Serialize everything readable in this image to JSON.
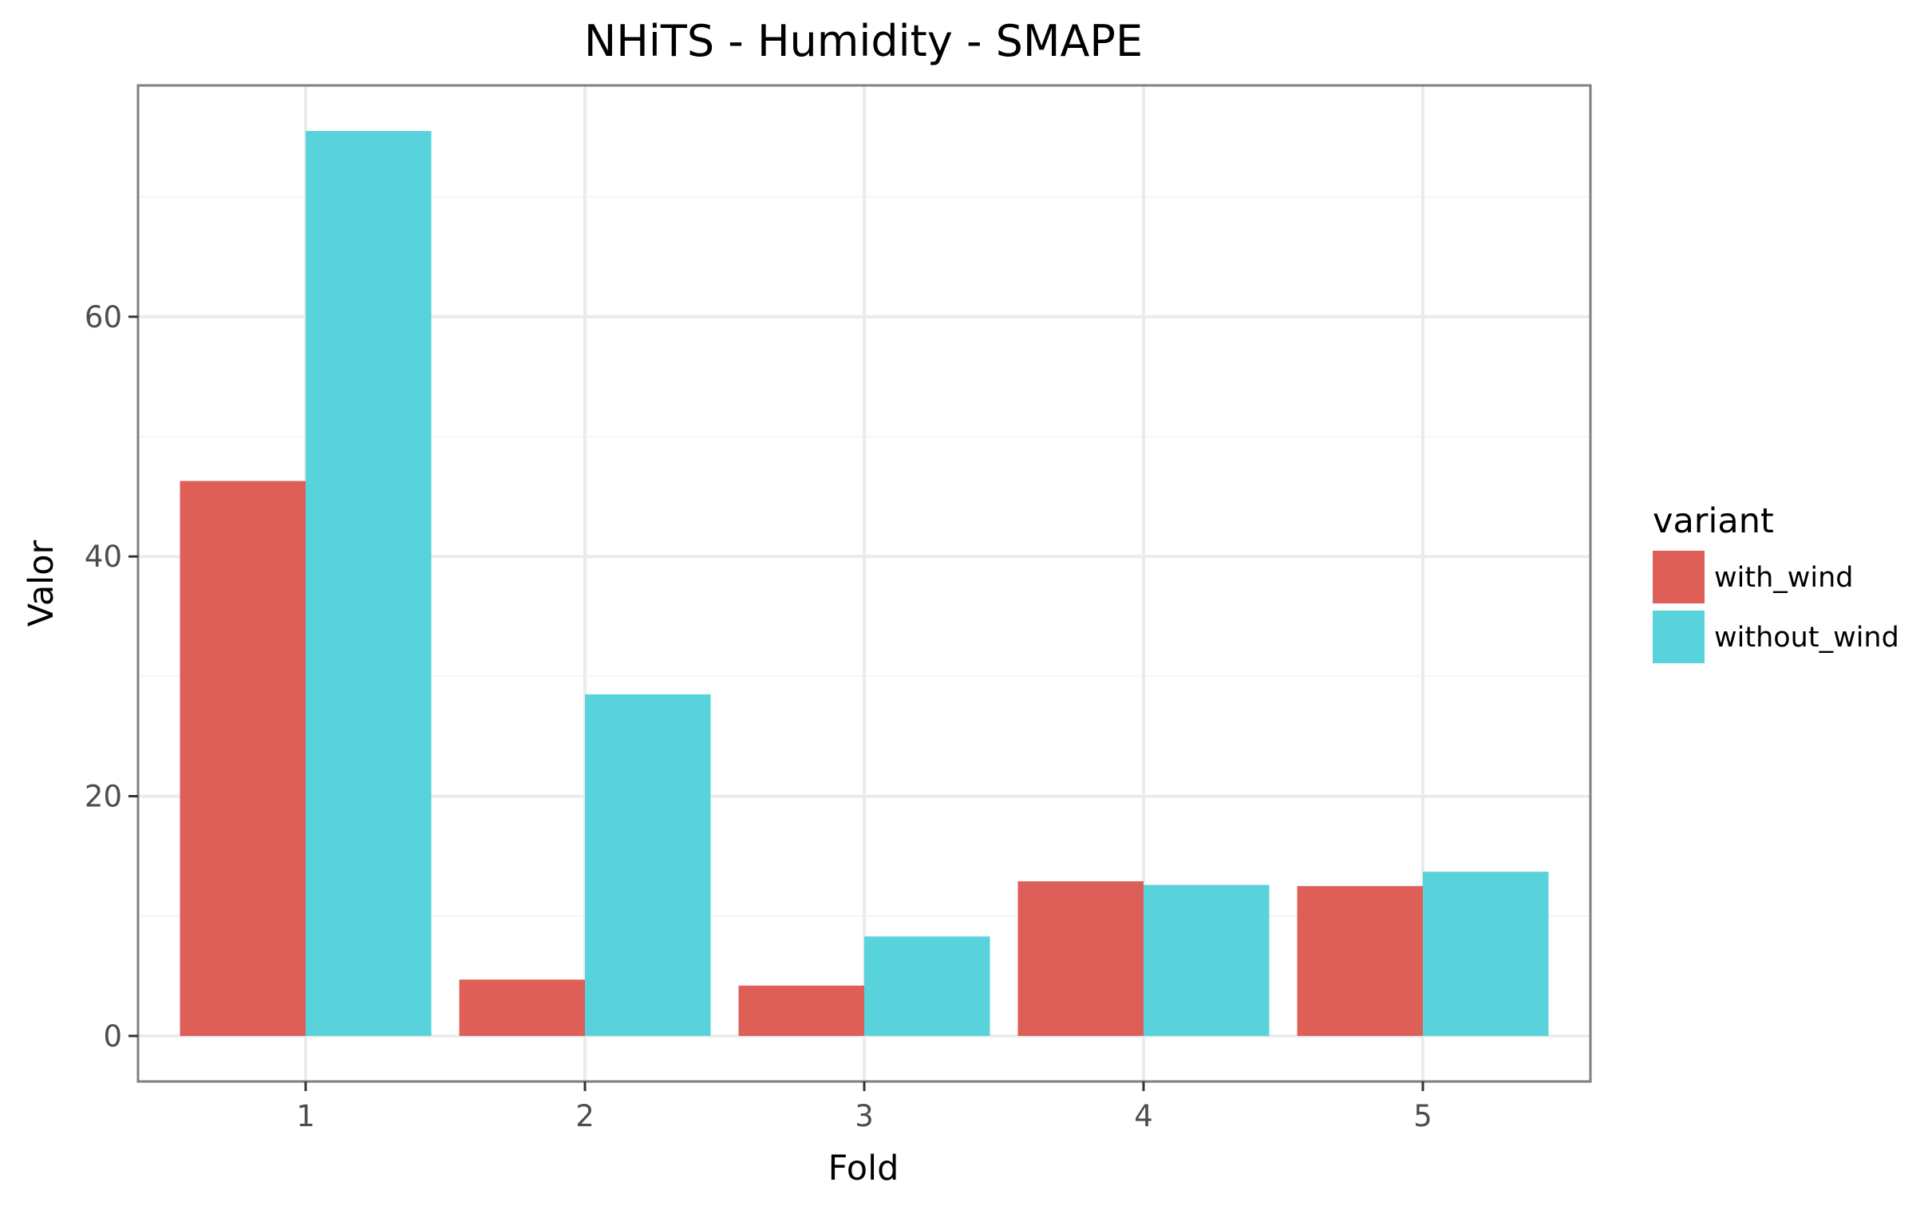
{
  "chart_data": {
    "type": "bar",
    "title": "NHiTS - Humidity - SMAPE",
    "xlabel": "Fold",
    "ylabel": "Valor",
    "categories": [
      "1",
      "2",
      "3",
      "4",
      "5"
    ],
    "series": [
      {
        "name": "with_wind",
        "color": "#dd5f57",
        "values": [
          46.3,
          4.7,
          4.2,
          12.9,
          12.5
        ]
      },
      {
        "name": "without_wind",
        "color": "#59d3db",
        "values": [
          75.5,
          28.5,
          8.3,
          12.6,
          13.7
        ]
      }
    ],
    "yticks": [
      0,
      20,
      40,
      60
    ],
    "ylim": [
      -3.8,
      79.3
    ],
    "grid": true,
    "legend": {
      "title": "variant",
      "position": "right"
    }
  }
}
